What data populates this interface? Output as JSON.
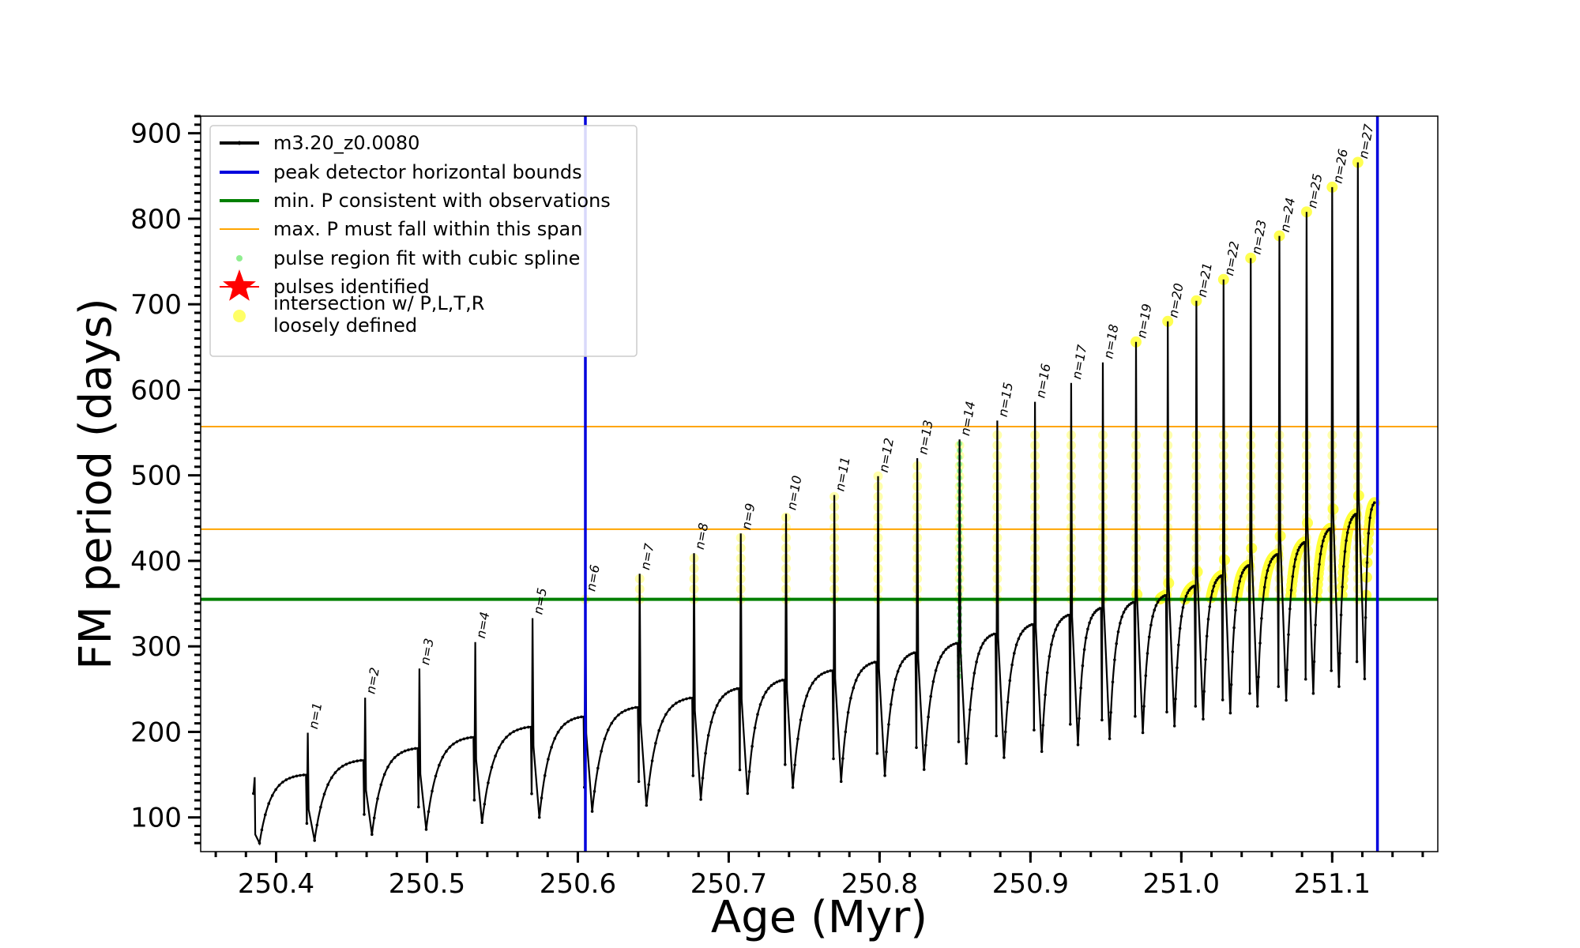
{
  "chart_data": {
    "type": "line",
    "title": "",
    "xlabel": "Age (Myr)",
    "ylabel": "FM period (days)",
    "xlim": [
      250.35,
      251.17
    ],
    "ylim": [
      60,
      920
    ],
    "xticks": [
      "250.4",
      "250.5",
      "250.6",
      "250.7",
      "250.8",
      "250.9",
      "251.0",
      "251.1"
    ],
    "xtick_values": [
      250.4,
      250.5,
      250.6,
      250.7,
      250.8,
      250.9,
      251.0,
      251.1
    ],
    "yticks": [
      "100",
      "200",
      "300",
      "400",
      "500",
      "600",
      "700",
      "800",
      "900"
    ],
    "ytick_values": [
      100,
      200,
      300,
      400,
      500,
      600,
      700,
      800,
      900
    ],
    "grid": false,
    "legend_position": "top-left",
    "legend": [
      {
        "label": "m3.20_z0.0080",
        "color": "#000000",
        "kind": "line-marker"
      },
      {
        "label": "peak detector horizontal bounds",
        "color": "#0000dd",
        "kind": "line"
      },
      {
        "label": "min. P consistent with observations",
        "color": "#007f00",
        "kind": "line"
      },
      {
        "label": "max. P must fall within this span",
        "color": "#ffa500",
        "kind": "line"
      },
      {
        "label": "pulse region fit with cubic spline",
        "color": "#90ee90",
        "kind": "dot"
      },
      {
        "label": "pulses identified",
        "color": "#ff0000",
        "kind": "star"
      },
      {
        "label": "intersection w/ P,L,T,R\nloosely defined",
        "color": "#ffff66",
        "kind": "dot"
      }
    ],
    "vertical_lines": [
      {
        "x": 250.605,
        "color": "#0000dd",
        "name": "peak detector horizontal bounds"
      },
      {
        "x": 251.13,
        "color": "#0000dd",
        "name": "peak detector horizontal bounds"
      }
    ],
    "horizontal_lines": [
      {
        "y": 355,
        "color": "#007f00",
        "name": "min. P consistent with observations"
      },
      {
        "y": 437,
        "color": "#ffa500",
        "name": "max. P must fall within this span"
      },
      {
        "y": 557,
        "color": "#ffa500",
        "name": "max. P must fall within this span"
      }
    ],
    "series_start": {
      "x": 250.385,
      "y": 80
    },
    "pulses": [
      {
        "label": "n=1",
        "age": 250.421,
        "peak": 199,
        "trough": 73,
        "pre": 150
      },
      {
        "label": "n=2",
        "age": 250.459,
        "peak": 240,
        "trough": 80,
        "pre": 167
      },
      {
        "label": "n=3",
        "age": 250.495,
        "peak": 274,
        "trough": 86,
        "pre": 181
      },
      {
        "label": "n=4",
        "age": 250.532,
        "peak": 305,
        "trough": 94,
        "pre": 194
      },
      {
        "label": "n=5",
        "age": 250.57,
        "peak": 333,
        "trough": 100,
        "pre": 206
      },
      {
        "label": "n=6",
        "age": 250.605,
        "peak": 360,
        "trough": 107,
        "pre": 218
      },
      {
        "label": "n=7",
        "age": 250.641,
        "peak": 385,
        "trough": 114,
        "pre": 229
      },
      {
        "label": "n=8",
        "age": 250.677,
        "peak": 409,
        "trough": 121,
        "pre": 240
      },
      {
        "label": "n=9",
        "age": 250.708,
        "peak": 432,
        "trough": 128,
        "pre": 251
      },
      {
        "label": "n=10",
        "age": 250.738,
        "peak": 455,
        "trough": 135,
        "pre": 261
      },
      {
        "label": "n=11",
        "age": 250.77,
        "peak": 477,
        "trough": 142,
        "pre": 272
      },
      {
        "label": "n=12",
        "age": 250.799,
        "peak": 499,
        "trough": 149,
        "pre": 282
      },
      {
        "label": "n=13",
        "age": 250.825,
        "peak": 520,
        "trough": 156,
        "pre": 293
      },
      {
        "label": "n=14",
        "age": 250.853,
        "peak": 542,
        "trough": 163,
        "pre": 304
      },
      {
        "label": "n=15",
        "age": 250.878,
        "peak": 564,
        "trough": 170,
        "pre": 315
      },
      {
        "label": "n=16",
        "age": 250.903,
        "peak": 586,
        "trough": 177,
        "pre": 326
      },
      {
        "label": "n=17",
        "age": 250.927,
        "peak": 608,
        "trough": 185,
        "pre": 337
      },
      {
        "label": "n=18",
        "age": 250.948,
        "peak": 632,
        "trough": 192,
        "pre": 345
      },
      {
        "label": "n=19",
        "age": 250.97,
        "peak": 656,
        "trough": 199,
        "pre": 352
      },
      {
        "label": "n=20",
        "age": 250.991,
        "peak": 680,
        "trough": 207,
        "pre": 360
      },
      {
        "label": "n=21",
        "age": 251.01,
        "peak": 704,
        "trough": 215,
        "pre": 371
      },
      {
        "label": "n=22",
        "age": 251.028,
        "peak": 729,
        "trough": 222,
        "pre": 383
      },
      {
        "label": "n=23",
        "age": 251.046,
        "peak": 754,
        "trough": 230,
        "pre": 395
      },
      {
        "label": "n=24",
        "age": 251.065,
        "peak": 780,
        "trough": 237,
        "pre": 408
      },
      {
        "label": "n=25",
        "age": 251.083,
        "peak": 808,
        "trough": 245,
        "pre": 422
      },
      {
        "label": "n=26",
        "age": 251.1,
        "peak": 837,
        "trough": 253,
        "pre": 438
      },
      {
        "label": "n=27",
        "age": 251.117,
        "peak": 866,
        "trough": 262,
        "pre": 455
      }
    ],
    "series_end": {
      "x": 251.128,
      "y": 468
    },
    "spline_pulse": "n=14"
  }
}
